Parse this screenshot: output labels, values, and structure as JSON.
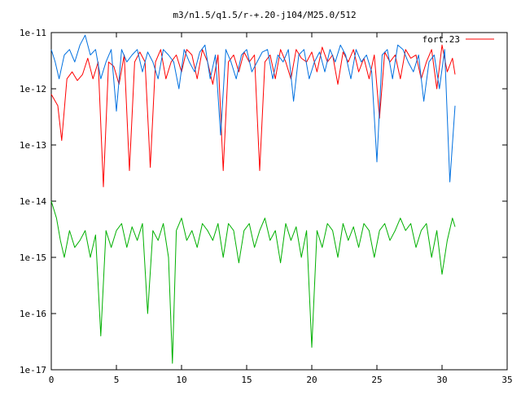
{
  "chart_data": {
    "type": "line",
    "title": "m3/n1.5/q1.5/r-+.20-j104/M25.0/512",
    "xlabel": "",
    "ylabel": "",
    "xlim": [
      0,
      35
    ],
    "ylim": [
      1e-17,
      1e-11
    ],
    "yscale": "log",
    "grid": false,
    "legend_position": "top-right",
    "x_ticks": [
      0,
      5,
      10,
      15,
      20,
      25,
      30,
      35
    ],
    "x_tick_labels": [
      "0",
      "5",
      "10",
      "15",
      "20",
      "25",
      "30",
      "35"
    ],
    "y_ticks": [
      1e-17,
      1e-16,
      1e-15,
      1e-14,
      1e-13,
      1e-12,
      1e-11
    ],
    "y_tick_labels": [
      "1e-17",
      "1e-16",
      "1e-15",
      "1e-14",
      "1e-13",
      "1e-12",
      "1e-11"
    ],
    "series": [
      {
        "name": "fort.23",
        "color": "#ff0000",
        "x": [
          0.0,
          0.5,
          0.8,
          1.2,
          1.6,
          2.0,
          2.4,
          2.8,
          3.2,
          3.6,
          4.0,
          4.4,
          4.8,
          5.2,
          5.6,
          6.0,
          6.4,
          6.8,
          7.2,
          7.6,
          8.0,
          8.4,
          8.8,
          9.2,
          9.6,
          10.0,
          10.4,
          10.8,
          11.2,
          11.6,
          12.0,
          12.4,
          12.8,
          13.2,
          13.6,
          14.0,
          14.4,
          14.8,
          15.2,
          15.6,
          16.0,
          16.4,
          16.8,
          17.2,
          17.6,
          18.0,
          18.4,
          18.8,
          19.2,
          19.6,
          20.0,
          20.4,
          20.8,
          21.2,
          21.6,
          22.0,
          22.4,
          22.8,
          23.2,
          23.6,
          24.0,
          24.4,
          24.8,
          25.2,
          25.6,
          26.0,
          26.4,
          26.8,
          27.2,
          27.6,
          28.0,
          28.4,
          28.8,
          29.2,
          29.6,
          30.0,
          30.4,
          30.8,
          31.0
        ],
        "y": [
          8e-13,
          5e-13,
          1.2e-13,
          1.5e-12,
          2e-12,
          1.4e-12,
          1.8e-12,
          3.5e-12,
          1.5e-12,
          3e-12,
          1.8e-14,
          3e-12,
          2.5e-12,
          1.2e-12,
          4e-12,
          3.5e-14,
          3e-12,
          4.5e-12,
          3e-12,
          4e-14,
          3e-12,
          5e-12,
          1.5e-12,
          3e-12,
          4e-12,
          2e-12,
          5e-12,
          4e-12,
          1.5e-12,
          5e-12,
          3e-12,
          1.2e-12,
          4e-12,
          3.5e-14,
          3e-12,
          4e-12,
          2e-12,
          4.5e-12,
          3e-12,
          4e-12,
          3.5e-14,
          3e-12,
          4e-12,
          1.5e-12,
          5e-12,
          3e-12,
          1.5e-12,
          5e-12,
          3.5e-12,
          3e-12,
          4.5e-12,
          2e-12,
          5.5e-12,
          3e-12,
          4e-12,
          1.2e-12,
          4.5e-12,
          3e-12,
          5e-12,
          2e-12,
          3.5e-12,
          1.5e-12,
          4e-12,
          3e-13,
          4.5e-12,
          3e-12,
          4e-12,
          1.5e-12,
          5e-12,
          3.5e-12,
          4e-12,
          1.5e-12,
          3e-12,
          5e-12,
          1e-12,
          6e-12,
          2e-12,
          3.5e-12,
          1.8e-12
        ]
      },
      {
        "name": "",
        "color": "#0070e0",
        "x": [
          0.0,
          0.3,
          0.6,
          1.0,
          1.4,
          1.8,
          2.2,
          2.6,
          3.0,
          3.4,
          3.8,
          4.2,
          4.6,
          5.0,
          5.4,
          5.8,
          6.2,
          6.6,
          7.0,
          7.4,
          7.8,
          8.2,
          8.6,
          9.0,
          9.4,
          9.8,
          10.2,
          10.6,
          11.0,
          11.4,
          11.8,
          12.2,
          12.6,
          13.0,
          13.4,
          13.8,
          14.2,
          14.6,
          15.0,
          15.4,
          15.8,
          16.2,
          16.6,
          17.0,
          17.4,
          17.8,
          18.2,
          18.6,
          19.0,
          19.4,
          19.8,
          20.2,
          20.6,
          21.0,
          21.4,
          21.8,
          22.2,
          22.6,
          23.0,
          23.4,
          23.8,
          24.2,
          24.6,
          25.0,
          25.4,
          25.8,
          26.2,
          26.6,
          27.0,
          27.4,
          27.8,
          28.2,
          28.6,
          29.0,
          29.4,
          29.8,
          30.2,
          30.6,
          31.0
        ],
        "y": [
          5e-12,
          3e-12,
          1.5e-12,
          4e-12,
          5e-12,
          3e-12,
          6e-12,
          9e-12,
          4e-12,
          5e-12,
          1.5e-12,
          3e-12,
          5e-12,
          4e-13,
          5e-12,
          3e-12,
          4e-12,
          5e-12,
          2e-12,
          4.5e-12,
          3e-12,
          1.5e-12,
          5e-12,
          4e-12,
          3e-12,
          1e-12,
          5e-12,
          3e-12,
          2e-12,
          4.5e-12,
          6e-12,
          1.5e-12,
          4e-12,
          1.5e-13,
          5e-12,
          3e-12,
          1.5e-12,
          4e-12,
          5e-12,
          2e-12,
          3e-12,
          4.5e-12,
          5e-12,
          1.5e-12,
          4e-12,
          3e-12,
          5e-12,
          6e-13,
          4e-12,
          5e-12,
          1.5e-12,
          3e-12,
          4.5e-12,
          2e-12,
          5e-12,
          3e-12,
          6e-12,
          4e-12,
          1.5e-12,
          5e-12,
          3e-12,
          4e-12,
          2e-12,
          5e-14,
          4e-12,
          5e-12,
          1.5e-12,
          6e-12,
          5e-12,
          3e-12,
          2e-12,
          4e-12,
          6e-13,
          3e-12,
          4e-12,
          1e-12,
          5e-12,
          2.2e-14,
          5e-13
        ]
      },
      {
        "name": "",
        "color": "#00b000",
        "x": [
          0.0,
          0.4,
          0.7,
          1.0,
          1.4,
          1.8,
          2.2,
          2.6,
          3.0,
          3.4,
          3.8,
          4.2,
          4.6,
          5.0,
          5.4,
          5.8,
          6.2,
          6.6,
          7.0,
          7.4,
          7.8,
          8.2,
          8.6,
          9.0,
          9.3,
          9.6,
          10.0,
          10.4,
          10.8,
          11.2,
          11.6,
          12.0,
          12.4,
          12.8,
          13.2,
          13.6,
          14.0,
          14.4,
          14.8,
          15.2,
          15.6,
          16.0,
          16.4,
          16.8,
          17.2,
          17.6,
          18.0,
          18.4,
          18.8,
          19.2,
          19.6,
          20.0,
          20.4,
          20.8,
          21.2,
          21.6,
          22.0,
          22.4,
          22.8,
          23.2,
          23.6,
          24.0,
          24.4,
          24.8,
          25.2,
          25.6,
          26.0,
          26.4,
          26.8,
          27.2,
          27.6,
          28.0,
          28.4,
          28.8,
          29.2,
          29.6,
          30.0,
          30.4,
          30.8,
          31.0
        ],
        "y": [
          1e-14,
          5e-15,
          2e-15,
          1e-15,
          3e-15,
          1.5e-15,
          2e-15,
          3e-15,
          1e-15,
          2.5e-15,
          4e-17,
          3e-15,
          1.5e-15,
          3e-15,
          4e-15,
          1.5e-15,
          3.5e-15,
          2e-15,
          4e-15,
          1e-16,
          3e-15,
          2e-15,
          4e-15,
          1e-15,
          1.3e-17,
          3e-15,
          5e-15,
          2e-15,
          3e-15,
          1.5e-15,
          4e-15,
          3e-15,
          2e-15,
          4e-15,
          1e-15,
          4e-15,
          3e-15,
          8e-16,
          3e-15,
          4e-15,
          1.5e-15,
          3e-15,
          5e-15,
          2e-15,
          3e-15,
          8e-16,
          4e-15,
          2e-15,
          3.5e-15,
          1e-15,
          3e-15,
          2.5e-17,
          3e-15,
          1.5e-15,
          4e-15,
          3e-15,
          1e-15,
          4e-15,
          2e-15,
          3.5e-15,
          1.5e-15,
          4e-15,
          3e-15,
          1e-15,
          3e-15,
          4e-15,
          2e-15,
          3e-15,
          5e-15,
          3e-15,
          4e-15,
          1.5e-15,
          3e-15,
          4e-15,
          1e-15,
          3e-15,
          5e-16,
          2e-15,
          5e-15,
          3.5e-15
        ]
      }
    ]
  }
}
